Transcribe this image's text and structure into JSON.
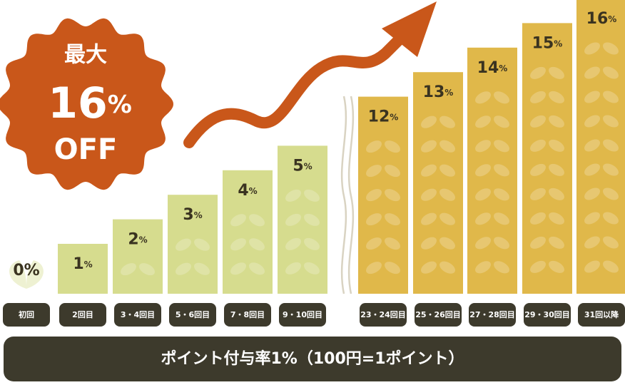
{
  "chart_data": {
    "type": "bar",
    "badge": {
      "top": "最大",
      "value": "16%",
      "bottom": "OFF"
    },
    "categories": [
      "初回",
      "2回目",
      "3・4回目",
      "5・6回目",
      "7・8回目",
      "9・10回目",
      "23・24回目",
      "25・26回目",
      "27・28回目",
      "29・30回目",
      "31回以降"
    ],
    "values": [
      0,
      1,
      2,
      3,
      4,
      5,
      12,
      13,
      14,
      15,
      16
    ],
    "value_labels": [
      "0%",
      "1%",
      "2%",
      "3%",
      "4%",
      "5%",
      "12%",
      "13%",
      "14%",
      "15%",
      "16%"
    ],
    "colors": {
      "low": "#d6dc8e",
      "high": "#e0b84a"
    },
    "footer": "ポイント付与率1%（100円=1ポイント）"
  }
}
